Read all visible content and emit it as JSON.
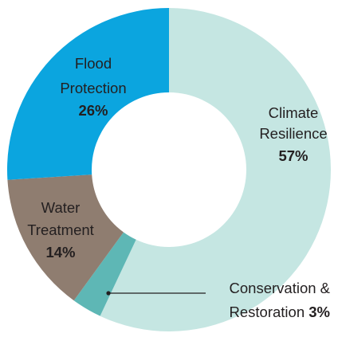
{
  "chart_data": {
    "type": "pie",
    "donut": true,
    "start": "top",
    "direction": "clockwise",
    "slices": [
      {
        "name_lines": [
          "Climate",
          "Resilience"
        ],
        "value": 57,
        "value_label": "57%",
        "color": "#c5e6e2"
      },
      {
        "name_lines": [
          "Conservation &",
          "Restoration"
        ],
        "value": 3,
        "value_label": "3%",
        "color": "#5eb7b5"
      },
      {
        "name_lines": [
          "Water",
          "Treatment"
        ],
        "value": 14,
        "value_label": "14%",
        "color": "#8f7d70"
      },
      {
        "name_lines": [
          "Flood",
          "Protection"
        ],
        "value": 26,
        "value_label": "26%",
        "color": "#0ba5df"
      }
    ]
  }
}
